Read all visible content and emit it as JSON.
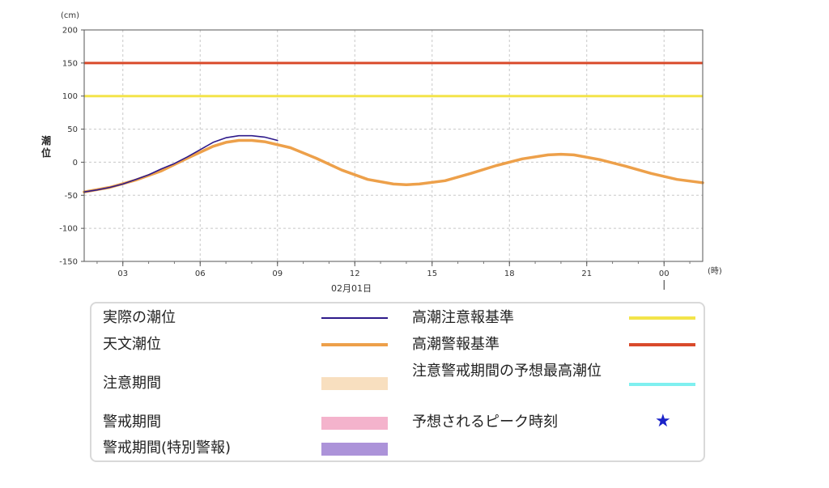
{
  "chart_data": {
    "type": "line",
    "y_unit": "(cm)",
    "x_unit": "(時)",
    "ylabel": "潮位",
    "date_label": "02月01日",
    "ylim": [
      -150,
      200
    ],
    "y_ticks": [
      200,
      150,
      100,
      50,
      0,
      -50,
      -100,
      -150
    ],
    "x_range_hours": [
      1.5,
      25.5
    ],
    "x_ticks": [
      {
        "hour": 3,
        "label": "03"
      },
      {
        "hour": 6,
        "label": "06"
      },
      {
        "hour": 9,
        "label": "09"
      },
      {
        "hour": 12,
        "label": "12"
      },
      {
        "hour": 15,
        "label": "15"
      },
      {
        "hour": 18,
        "label": "18"
      },
      {
        "hour": 21,
        "label": "21"
      },
      {
        "hour": 24,
        "label": "00"
      }
    ],
    "thresholds": [
      {
        "name": "高潮警報基準",
        "value": 150,
        "color": "#d94a2b"
      },
      {
        "name": "高潮注意報基準",
        "value": 100,
        "color": "#f3e44a"
      }
    ],
    "series": [
      {
        "name": "天文潮位",
        "color": "#eda04a",
        "x": [
          1.5,
          2.5,
          3.5,
          4.5,
          5.5,
          6.5,
          7.0,
          7.5,
          8.0,
          8.5,
          9.5,
          10.5,
          11.5,
          12.5,
          13.5,
          14.0,
          14.5,
          15.5,
          16.5,
          17.5,
          18.5,
          19.5,
          20.0,
          20.5,
          21.5,
          22.5,
          23.5,
          24.5,
          25.5
        ],
        "values": [
          -45,
          -38,
          -27,
          -13,
          6,
          24,
          30,
          33,
          33,
          31,
          22,
          6,
          -12,
          -26,
          -33,
          -34,
          -33,
          -28,
          -17,
          -5,
          5,
          11,
          12,
          11,
          4,
          -6,
          -17,
          -26,
          -31
        ]
      },
      {
        "name": "実際の潮位",
        "color": "#2e1a8a",
        "x": [
          1.5,
          2.0,
          2.5,
          3.0,
          3.5,
          4.0,
          4.5,
          5.0,
          5.5,
          6.0,
          6.5,
          7.0,
          7.5,
          8.0,
          8.5,
          9.0
        ],
        "values": [
          -45,
          -42,
          -38,
          -33,
          -26,
          -19,
          -10,
          -2,
          8,
          19,
          30,
          37,
          40,
          40,
          38,
          33
        ]
      }
    ]
  },
  "legend": {
    "items": [
      {
        "label": "実際の潮位"
      },
      {
        "label": "天文潮位"
      },
      {
        "label": "注意期間"
      },
      {
        "label": "警戒期間"
      },
      {
        "label": "警戒期間(特別警報)"
      },
      {
        "label": "高潮注意報基準"
      },
      {
        "label": "高潮警報基準"
      },
      {
        "label": "注意警戒期間の予想最高潮位"
      },
      {
        "label": "予想されるピーク時刻"
      }
    ],
    "colors": {
      "actual": "#2e1a8a",
      "astro": "#eda04a",
      "caution": "#f8dfbf",
      "warning": "#f4b3cc",
      "special": "#ac93d9",
      "advisory_line": "#f3e44a",
      "warning_line": "#d94a2b",
      "forecast_peak": "#7ff0f0",
      "star": "#1a22c8"
    },
    "star_glyph": "★"
  }
}
